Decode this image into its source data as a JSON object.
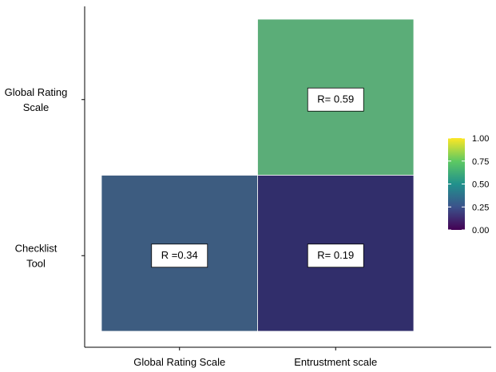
{
  "chart_data": {
    "type": "heatmap",
    "title": "",
    "xlabel": "",
    "ylabel": "",
    "x_categories": [
      "Global Rating Scale",
      "Entrustment scale"
    ],
    "y_categories": [
      {
        "lines": [
          "Global Rating",
          "Scale"
        ]
      },
      {
        "lines": [
          "Checklist",
          "Tool"
        ]
      }
    ],
    "cells": [
      {
        "x": "Entrustment scale",
        "y": "Global Rating Scale",
        "value": 0.59,
        "label": "R= 0.59"
      },
      {
        "x": "Global Rating Scale",
        "y": "Checklist Tool",
        "value": 0.34,
        "label": "R =0.34"
      },
      {
        "x": "Entrustment scale",
        "y": "Checklist Tool",
        "value": 0.19,
        "label": "R= 0.19"
      }
    ],
    "colorbar": {
      "range": [
        0,
        1
      ],
      "ticks": [
        "0.00",
        "0.25",
        "0.50",
        "0.75",
        "1.00"
      ],
      "palette": [
        "#440154",
        "#3b528b",
        "#21918c",
        "#5ec962",
        "#fde725"
      ]
    },
    "cell_colors": [
      "#5bad78",
      "#3d5c80",
      "#312e6b"
    ],
    "grid": false,
    "legend_position": "right"
  }
}
